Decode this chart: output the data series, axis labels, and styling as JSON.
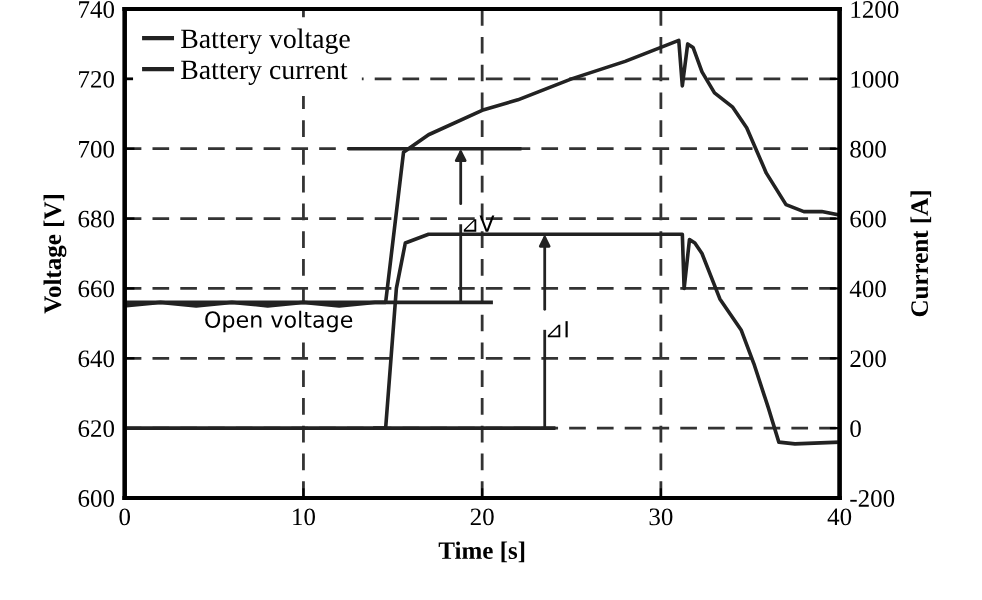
{
  "chart_data": {
    "type": "line",
    "xlabel": "Time [s]",
    "ylabel": "Voltage [V]",
    "y2label": "Current [A]",
    "xlim": [
      0,
      40
    ],
    "xticks": [
      0,
      10,
      20,
      30,
      40
    ],
    "ylim": [
      600,
      740
    ],
    "yticks": [
      600,
      620,
      640,
      660,
      680,
      700,
      720,
      740
    ],
    "y2lim": [
      -200,
      1200
    ],
    "y2ticks": [
      -200,
      0,
      200,
      400,
      600,
      800,
      1000,
      1200
    ],
    "grid": true,
    "legend": "top left",
    "series": [
      {
        "name": "Battery voltage",
        "color": "#222222",
        "x": [
          0,
          2,
          4,
          6,
          8,
          10,
          12,
          14,
          14.6,
          15.6,
          17,
          20,
          22,
          25,
          28,
          30,
          31,
          31.2,
          31.5,
          31.8,
          32.3,
          33,
          34,
          34.8,
          35.9,
          37,
          38,
          39,
          40
        ],
        "values": [
          655,
          656,
          655,
          656,
          655,
          656,
          655,
          656,
          656,
          699,
          704,
          711,
          714,
          720,
          725,
          729,
          731,
          718,
          730,
          729,
          722,
          716,
          712,
          706,
          693,
          684,
          682,
          682,
          681
        ]
      },
      {
        "name": "Battery current",
        "color": "#222222",
        "axis": "y2",
        "x": [
          0,
          5,
          10,
          14.6,
          15.2,
          15.7,
          17,
          20,
          25,
          31.2,
          31.3,
          31.6,
          31.9,
          32.3,
          33.3,
          34.5,
          35.2,
          36,
          36.6,
          37.5,
          40
        ],
        "values": [
          0,
          0,
          0,
          0,
          400,
          530,
          555,
          555,
          555,
          555,
          400,
          540,
          530,
          500,
          370,
          280,
          185,
          60,
          -40,
          -45,
          -40
        ]
      },
      {
        "type": "line",
        "color": "#222222",
        "x": [
          12.6,
          22.1
        ],
        "values": [
          700,
          700
        ]
      },
      {
        "type": "line",
        "color": "#222222",
        "x": [
          0,
          20.5
        ],
        "values": [
          656,
          656
        ]
      },
      {
        "type": "line",
        "color": "#222222",
        "axis": "y2",
        "x": [
          14,
          24
        ],
        "values": [
          0,
          0
        ]
      }
    ],
    "annotations": [
      {
        "text": "Open voltage",
        "x": 3.5,
        "y": 656
      },
      {
        "text": "⊿V",
        "x": 18.8,
        "y": 700
      },
      {
        "text": "⊿I",
        "x": 23.5,
        "y": 675.5
      }
    ]
  }
}
